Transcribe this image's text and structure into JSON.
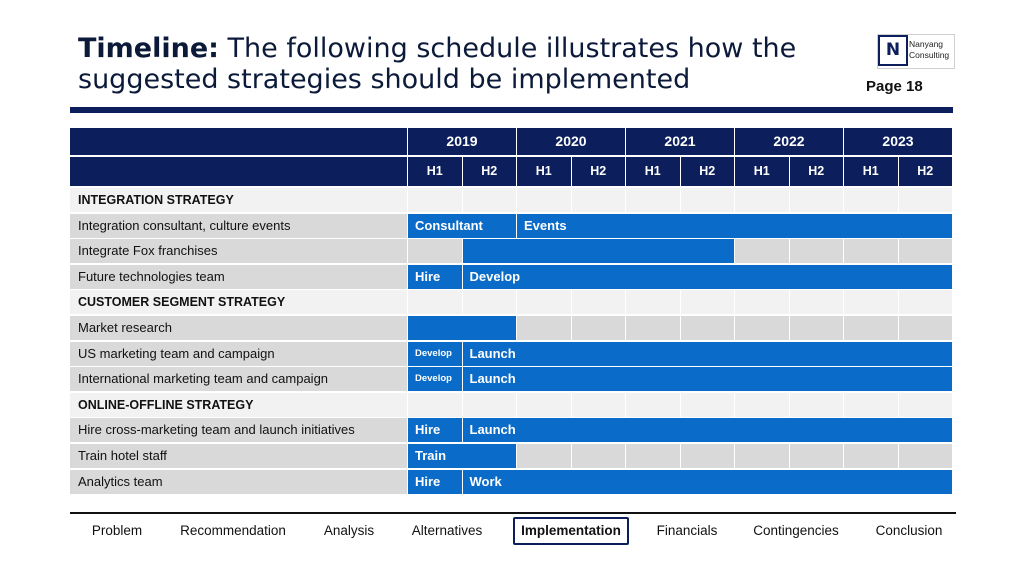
{
  "header": {
    "title_bold": "Timeline:",
    "title_rest": " The following schedule illustrates how the suggested strategies should be implemented",
    "page": "Page 18",
    "logo": {
      "mark": "N",
      "line1": "Nanyang",
      "line2": "Consulting"
    }
  },
  "timeline": {
    "years": [
      "2019",
      "2020",
      "2021",
      "2022",
      "2023"
    ],
    "halves": [
      "H1",
      "H2",
      "H1",
      "H2",
      "H1",
      "H2",
      "H1",
      "H2",
      "H1",
      "H2"
    ],
    "rows": [
      {
        "label": "INTEGRATION STRATEGY",
        "section": true,
        "bars": []
      },
      {
        "label": "Integration consultant, culture events",
        "section": false,
        "bars": [
          {
            "start": 0,
            "end": 2,
            "text": "Consultant"
          },
          {
            "start": 2,
            "end": 10,
            "text": "Events"
          }
        ]
      },
      {
        "label": "Integrate Fox franchises",
        "section": false,
        "bars": [
          {
            "start": 1,
            "end": 6,
            "text": ""
          }
        ]
      },
      {
        "label": "Future technologies team",
        "section": false,
        "bars": [
          {
            "start": 0,
            "end": 1,
            "text": "Hire"
          },
          {
            "start": 1,
            "end": 10,
            "text": "Develop"
          }
        ]
      },
      {
        "label": "CUSTOMER SEGMENT STRATEGY",
        "section": true,
        "bars": []
      },
      {
        "label": "Market research",
        "section": false,
        "bars": [
          {
            "start": 0,
            "end": 2,
            "text": ""
          }
        ]
      },
      {
        "label": "US marketing team and campaign",
        "section": false,
        "bars": [
          {
            "start": 0,
            "end": 1,
            "text": "Develop",
            "small": true
          },
          {
            "start": 1,
            "end": 10,
            "text": "Launch"
          }
        ]
      },
      {
        "label": "International marketing team and campaign",
        "section": false,
        "bars": [
          {
            "start": 0,
            "end": 1,
            "text": "Develop",
            "small": true
          },
          {
            "start": 1,
            "end": 10,
            "text": "Launch"
          }
        ]
      },
      {
        "label": "ONLINE-OFFLINE STRATEGY",
        "section": true,
        "bars": []
      },
      {
        "label": "Hire cross-marketing team and launch initiatives",
        "section": false,
        "bars": [
          {
            "start": 0,
            "end": 1,
            "text": "Hire"
          },
          {
            "start": 1,
            "end": 10,
            "text": "Launch"
          }
        ]
      },
      {
        "label": "Train hotel staff",
        "section": false,
        "bars": [
          {
            "start": 0,
            "end": 2,
            "text": "Train"
          }
        ]
      },
      {
        "label": "Analytics team",
        "section": false,
        "bars": [
          {
            "start": 0,
            "end": 1,
            "text": "Hire"
          },
          {
            "start": 1,
            "end": 10,
            "text": "Work"
          }
        ]
      }
    ]
  },
  "nav": {
    "items": [
      "Problem",
      "Recommendation",
      "Analysis",
      "Alternatives",
      "Implementation",
      "Financials",
      "Contingencies",
      "Conclusion"
    ],
    "active": "Implementation"
  }
}
